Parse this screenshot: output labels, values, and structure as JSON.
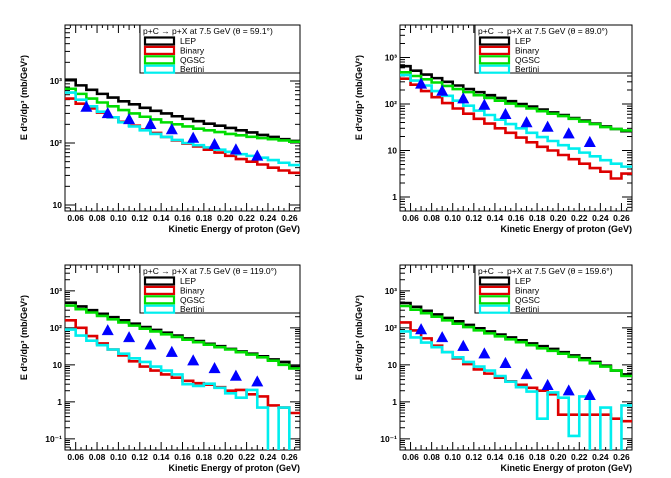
{
  "figure": {
    "x_title": "Kinetic Energy of proton (GeV)",
    "y_title": "E d³σ/dp³ (mb/GeV²)",
    "legend_entries": [
      {
        "label": "LEP",
        "color": "#000000"
      },
      {
        "label": "Binary",
        "color": "#dd0000"
      },
      {
        "label": "QGSC",
        "color": "#00dd00"
      },
      {
        "label": "Bertini",
        "color": "#00eeee"
      }
    ],
    "marker_color": "#0000ff"
  },
  "chart_data": [
    {
      "type": "line",
      "title": "p+C → p+X at 7.5 GeV (θ =  59.1°)",
      "xlabel": "Kinetic Energy of proton (GeV)",
      "ylabel": "E d³σ/dp³ (mb/GeV²)",
      "xlim": [
        0.05,
        0.27
      ],
      "ylim": [
        8,
        8000
      ],
      "yscale": "log",
      "xticks": [
        0.06,
        0.08,
        0.1,
        0.12,
        0.14,
        0.16,
        0.18,
        0.2,
        0.22,
        0.24,
        0.26
      ],
      "yticks": [
        {
          "value": 10,
          "label": "10"
        },
        {
          "value": 100,
          "label": "10²"
        },
        {
          "value": 1000,
          "label": "10³"
        }
      ],
      "bin_edges": [
        0.05,
        0.06,
        0.07,
        0.08,
        0.09,
        0.1,
        0.11,
        0.12,
        0.13,
        0.14,
        0.15,
        0.16,
        0.17,
        0.18,
        0.19,
        0.2,
        0.21,
        0.22,
        0.23,
        0.24,
        0.25,
        0.26,
        0.27
      ],
      "series": [
        {
          "name": "LEP",
          "color": "#000000",
          "values": [
            1050,
            850,
            720,
            620,
            540,
            470,
            420,
            370,
            330,
            300,
            270,
            245,
            225,
            205,
            190,
            175,
            160,
            148,
            135,
            125,
            115,
            108
          ]
        },
        {
          "name": "Binary",
          "color": "#dd0000",
          "values": [
            520,
            430,
            360,
            310,
            260,
            220,
            190,
            165,
            145,
            125,
            110,
            98,
            88,
            78,
            70,
            62,
            55,
            50,
            45,
            40,
            36,
            33
          ]
        },
        {
          "name": "QGSC",
          "color": "#00dd00",
          "values": [
            750,
            620,
            520,
            450,
            390,
            340,
            300,
            265,
            240,
            215,
            200,
            185,
            170,
            160,
            150,
            140,
            133,
            126,
            120,
            115,
            110,
            105
          ]
        },
        {
          "name": "Bertini",
          "color": "#00eeee",
          "values": [
            650,
            500,
            390,
            320,
            260,
            215,
            185,
            160,
            140,
            125,
            112,
            100,
            92,
            85,
            78,
            72,
            66,
            62,
            58,
            53,
            48,
            44
          ]
        }
      ],
      "points": {
        "x": [
          0.07,
          0.09,
          0.11,
          0.13,
          0.15,
          0.17,
          0.19,
          0.21,
          0.23
        ],
        "y": [
          380,
          300,
          240,
          200,
          165,
          120,
          95,
          78,
          62
        ]
      }
    },
    {
      "type": "line",
      "title": "p+C → p+X at 7.5 GeV (θ =  89.0°)",
      "xlabel": "Kinetic Energy of proton (GeV)",
      "ylabel": "E d³σ/dp³ (mb/GeV²)",
      "xlim": [
        0.05,
        0.27
      ],
      "ylim": [
        0.5,
        5000
      ],
      "yscale": "log",
      "xticks": [
        0.06,
        0.08,
        0.1,
        0.12,
        0.14,
        0.16,
        0.18,
        0.2,
        0.22,
        0.24,
        0.26
      ],
      "yticks": [
        {
          "value": 1,
          "label": "1"
        },
        {
          "value": 10,
          "label": "10"
        },
        {
          "value": 100,
          "label": "10²"
        },
        {
          "value": 1000,
          "label": "10³"
        }
      ],
      "bin_edges": [
        0.05,
        0.06,
        0.07,
        0.08,
        0.09,
        0.1,
        0.11,
        0.12,
        0.13,
        0.14,
        0.15,
        0.16,
        0.17,
        0.18,
        0.19,
        0.2,
        0.21,
        0.22,
        0.23,
        0.24,
        0.25,
        0.26,
        0.27
      ],
      "series": [
        {
          "name": "LEP",
          "color": "#000000",
          "values": [
            650,
            520,
            430,
            360,
            300,
            250,
            210,
            180,
            155,
            135,
            115,
            100,
            88,
            76,
            66,
            58,
            50,
            44,
            38,
            33,
            29,
            26
          ]
        },
        {
          "name": "Binary",
          "color": "#dd0000",
          "values": [
            350,
            260,
            190,
            140,
            105,
            80,
            62,
            48,
            38,
            30,
            24,
            19,
            15,
            12,
            10,
            8,
            6.5,
            5.2,
            4.2,
            3.5,
            2.5,
            3.2
          ]
        },
        {
          "name": "QGSC",
          "color": "#00dd00",
          "values": [
            480,
            400,
            340,
            290,
            245,
            210,
            180,
            155,
            135,
            118,
            102,
            90,
            80,
            70,
            62,
            55,
            48,
            42,
            37,
            32,
            29,
            27
          ]
        },
        {
          "name": "Bertini",
          "color": "#00eeee",
          "values": [
            420,
            320,
            250,
            190,
            150,
            118,
            92,
            72,
            58,
            46,
            37,
            30,
            24,
            19.5,
            16,
            13,
            11,
            9,
            7.5,
            6.2,
            5.2,
            4.5
          ]
        }
      ],
      "points": {
        "x": [
          0.07,
          0.09,
          0.11,
          0.13,
          0.15,
          0.17,
          0.19,
          0.21,
          0.23
        ],
        "y": [
          270,
          190,
          130,
          95,
          60,
          40,
          32,
          23,
          15
        ]
      }
    },
    {
      "type": "line",
      "title": "p+C → p+X at 7.5 GeV (θ = 119.0°)",
      "xlabel": "Kinetic Energy of proton (GeV)",
      "ylabel": "E d³σ/dp³ (mb/GeV²)",
      "xlim": [
        0.05,
        0.27
      ],
      "ylim": [
        0.05,
        5000
      ],
      "yscale": "log",
      "xticks": [
        0.06,
        0.08,
        0.1,
        0.12,
        0.14,
        0.16,
        0.18,
        0.2,
        0.22,
        0.24,
        0.26
      ],
      "yticks": [
        {
          "value": 0.1,
          "label": "10⁻¹"
        },
        {
          "value": 1,
          "label": "1"
        },
        {
          "value": 10,
          "label": "10"
        },
        {
          "value": 100,
          "label": "10²"
        },
        {
          "value": 1000,
          "label": "10³"
        }
      ],
      "bin_edges": [
        0.05,
        0.06,
        0.07,
        0.08,
        0.09,
        0.1,
        0.11,
        0.12,
        0.13,
        0.14,
        0.15,
        0.16,
        0.17,
        0.18,
        0.19,
        0.2,
        0.21,
        0.22,
        0.23,
        0.24,
        0.25,
        0.26,
        0.27
      ],
      "series": [
        {
          "name": "LEP",
          "color": "#000000",
          "values": [
            480,
            380,
            300,
            240,
            195,
            160,
            130,
            105,
            88,
            74,
            62,
            52,
            44,
            37,
            32,
            27,
            23,
            20,
            17,
            14,
            12,
            9
          ]
        },
        {
          "name": "Binary",
          "color": "#dd0000",
          "values": [
            160,
            100,
            60,
            38,
            26,
            18,
            12.5,
            9,
            7,
            5.5,
            4.5,
            3.7,
            3.2,
            2.9,
            2.5,
            2,
            2.1,
            1.6,
            1.4,
            0.8,
            0.7,
            0.5
          ]
        },
        {
          "name": "QGSC",
          "color": "#00dd00",
          "values": [
            400,
            320,
            260,
            210,
            170,
            140,
            115,
            95,
            80,
            67,
            57,
            48,
            41,
            35,
            30,
            26,
            22,
            19,
            16,
            13,
            10,
            8
          ]
        },
        {
          "name": "Bertini",
          "color": "#00eeee",
          "values": [
            90,
            62,
            45,
            34,
            26,
            20,
            15,
            12,
            9,
            7,
            5.5,
            3,
            2.7,
            3.1,
            2.4,
            1.7,
            1.3,
            2.1,
            0.7,
            0.01,
            0.7,
            0.01
          ]
        }
      ],
      "points": {
        "x": [
          0.09,
          0.11,
          0.13,
          0.15,
          0.17,
          0.19,
          0.21,
          0.23
        ],
        "y": [
          85,
          55,
          35,
          22,
          13,
          8,
          5,
          3.5
        ]
      }
    },
    {
      "type": "line",
      "title": "p+C → p+X at 7.5 GeV (θ = 159.6°)",
      "xlabel": "Kinetic Energy of proton (GeV)",
      "ylabel": "E d³σ/dp³ (mb/GeV²)",
      "xlim": [
        0.05,
        0.27
      ],
      "ylim": [
        0.05,
        5000
      ],
      "yscale": "log",
      "xticks": [
        0.06,
        0.08,
        0.1,
        0.12,
        0.14,
        0.16,
        0.18,
        0.2,
        0.22,
        0.24,
        0.26
      ],
      "yticks": [
        {
          "value": 0.1,
          "label": "10⁻¹"
        },
        {
          "value": 1,
          "label": "1"
        },
        {
          "value": 10,
          "label": "10"
        },
        {
          "value": 100,
          "label": "10²"
        },
        {
          "value": 1000,
          "label": "10³"
        }
      ],
      "bin_edges": [
        0.05,
        0.06,
        0.07,
        0.08,
        0.09,
        0.1,
        0.11,
        0.12,
        0.13,
        0.14,
        0.15,
        0.16,
        0.17,
        0.18,
        0.19,
        0.2,
        0.21,
        0.22,
        0.23,
        0.24,
        0.25,
        0.26,
        0.27
      ],
      "series": [
        {
          "name": "LEP",
          "color": "#000000",
          "values": [
            470,
            370,
            290,
            230,
            185,
            150,
            120,
            97,
            80,
            66,
            55,
            46,
            38,
            32,
            27,
            22,
            18,
            15,
            12,
            9.5,
            7,
            5.5
          ]
        },
        {
          "name": "Binary",
          "color": "#dd0000",
          "values": [
            140,
            85,
            52,
            33,
            22,
            15,
            10.5,
            7.5,
            5.8,
            4.5,
            3.6,
            2.9,
            2.4,
            2,
            1.6,
            0.45,
            0.45,
            0.45,
            0.45,
            0.45,
            0.35,
            0.3
          ]
        },
        {
          "name": "QGSC",
          "color": "#00dd00",
          "values": [
            390,
            310,
            250,
            200,
            160,
            130,
            105,
            86,
            71,
            59,
            49,
            41,
            34,
            28,
            24,
            20,
            16.5,
            13.5,
            11,
            9,
            7,
            5
          ]
        },
        {
          "name": "Bertini",
          "color": "#00eeee",
          "values": [
            80,
            55,
            40,
            30,
            22,
            16,
            12,
            9,
            7,
            5,
            3.5,
            2.5,
            1.9,
            0.35,
            1.8,
            1.3,
            0.12,
            1.4,
            0.01,
            0.7,
            0.01,
            0.8
          ]
        }
      ],
      "points": {
        "x": [
          0.07,
          0.09,
          0.11,
          0.13,
          0.15,
          0.17,
          0.19,
          0.21,
          0.23
        ],
        "y": [
          90,
          55,
          32,
          20,
          11,
          5.5,
          2.8,
          2,
          1.5
        ]
      }
    }
  ]
}
